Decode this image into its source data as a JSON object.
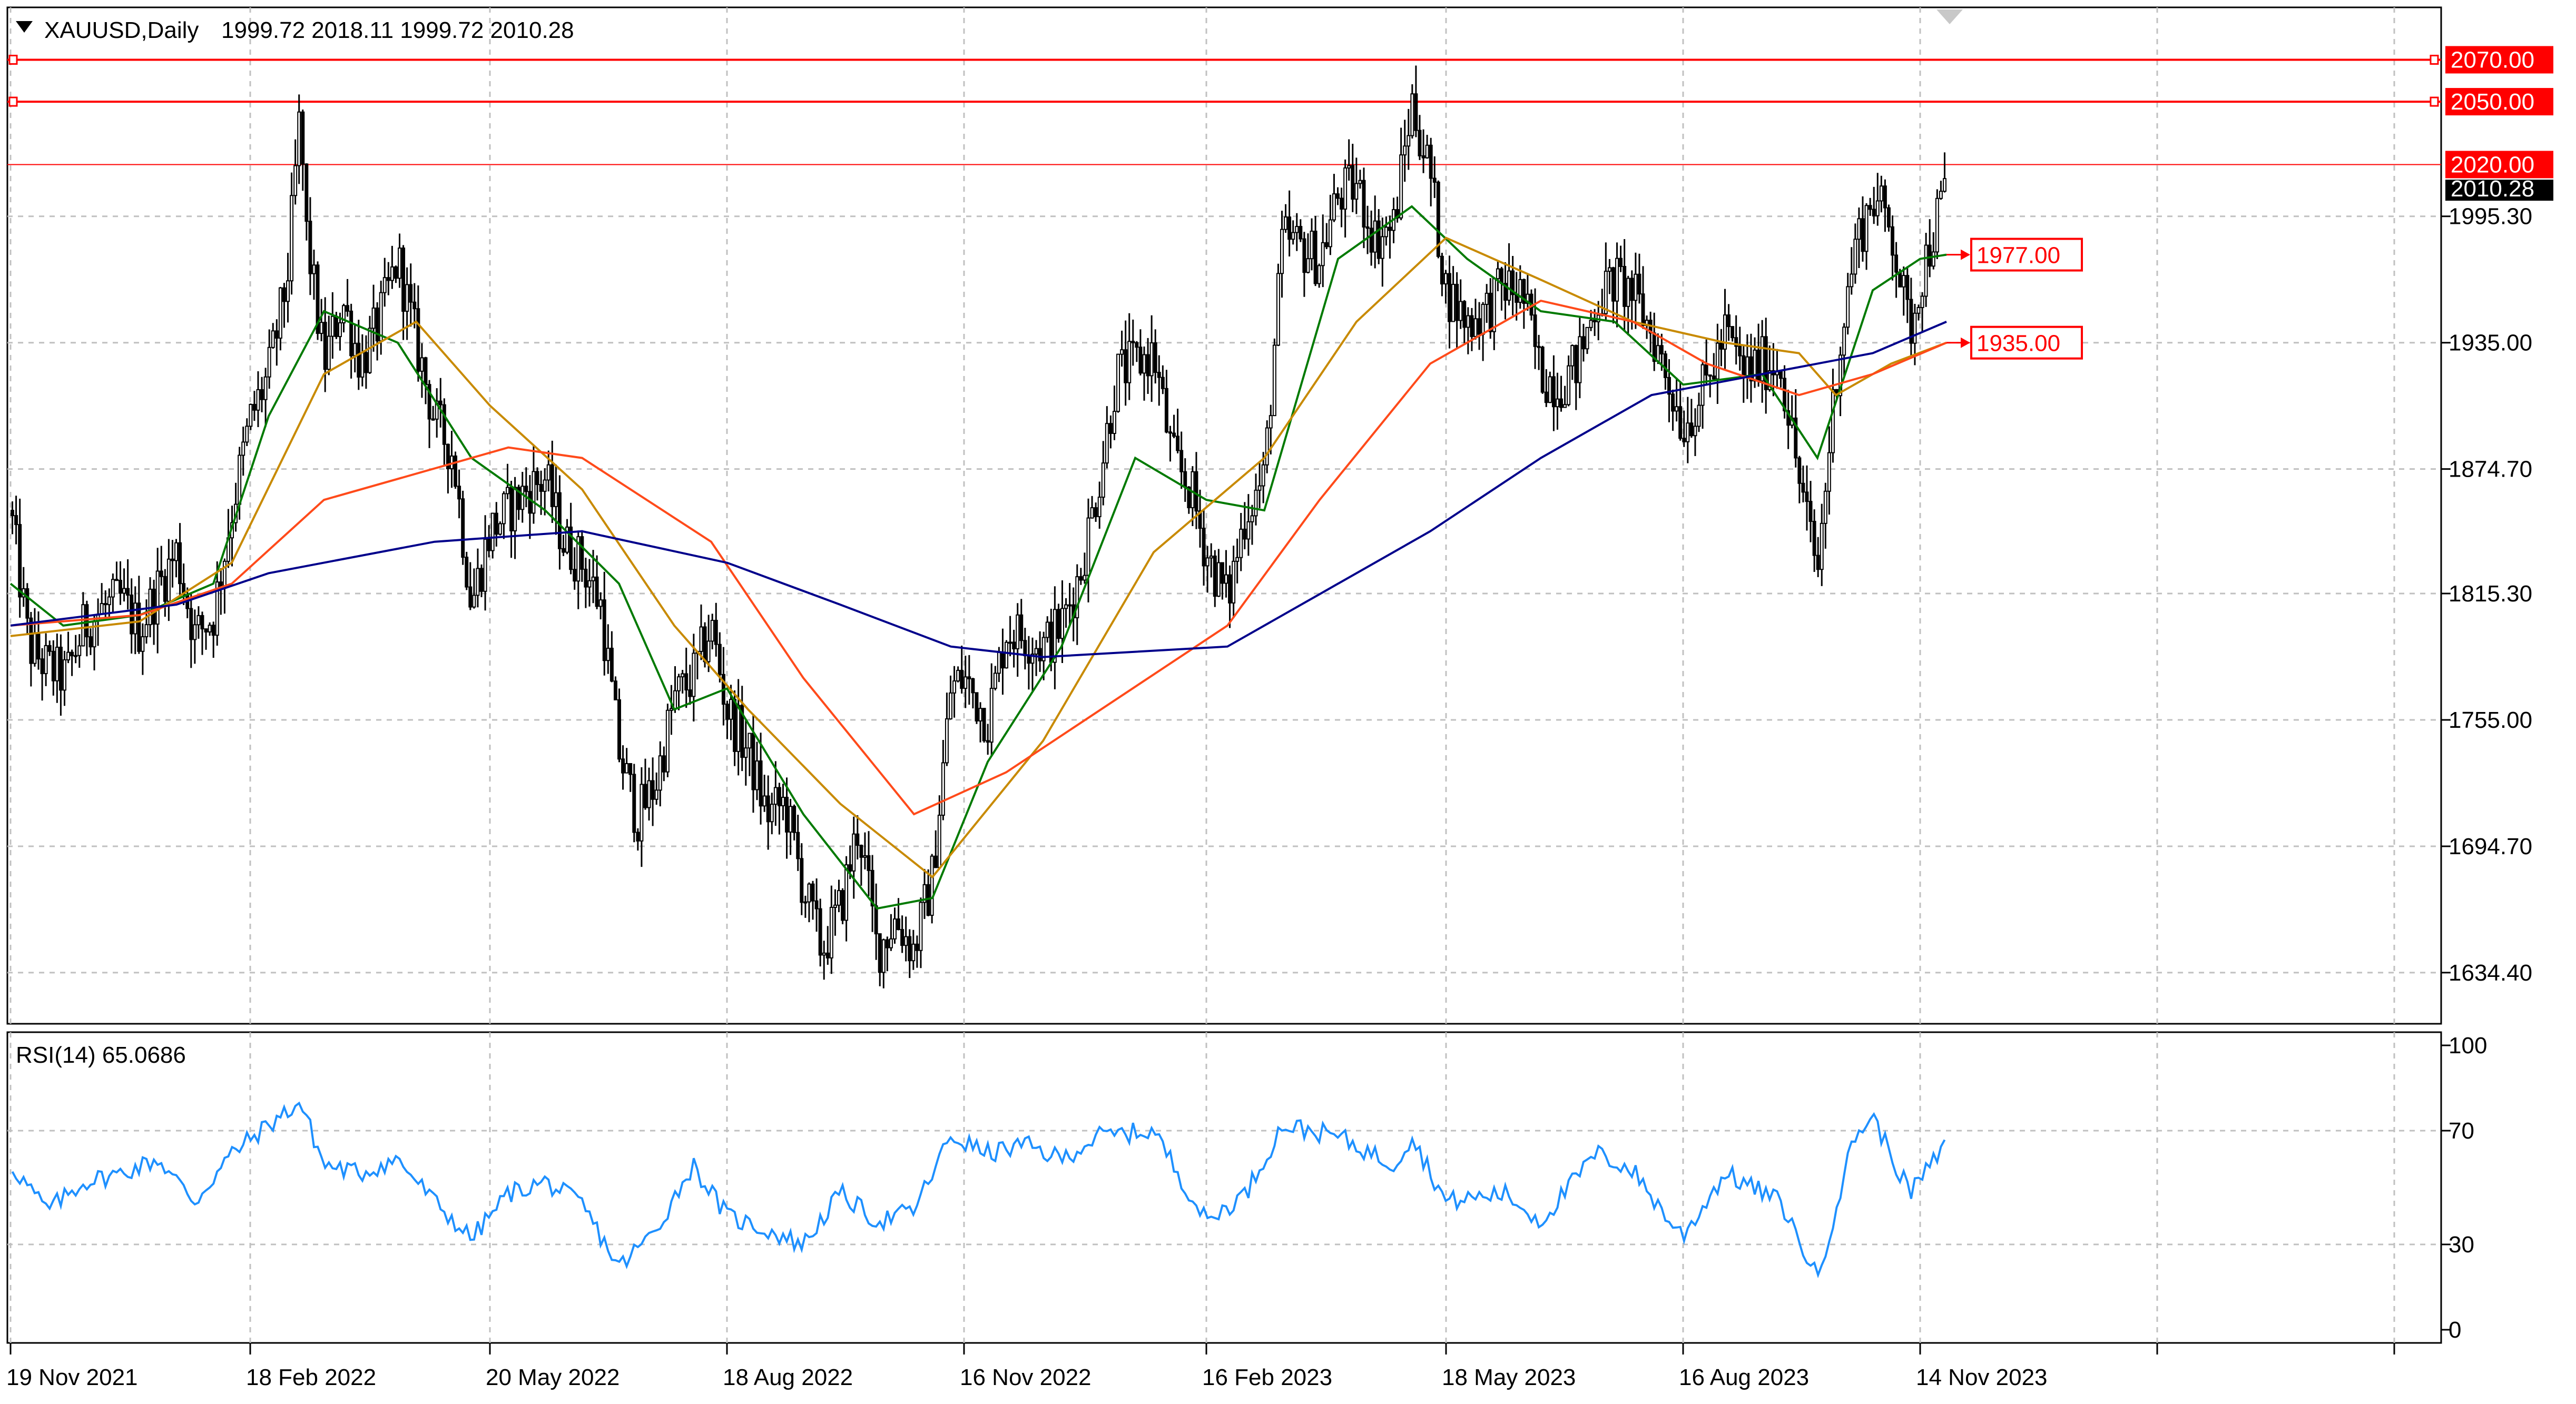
{
  "header": {
    "symbol": "XAUUSD,Daily",
    "ohlc": "1999.72 2018.11 1999.72 2010.28"
  },
  "indicator": {
    "label": "RSI(14) 65.0686"
  },
  "colors": {
    "candle": "#000000",
    "grid": "#c0c0c0",
    "level_line": "#ff0000",
    "ma_fast": "#007a00",
    "ma_mid": "#c88a00",
    "ma_slow": "#ff4a1a",
    "ma_long": "#00008b",
    "rsi": "#1e90ff",
    "current_price_bg": "#000000"
  },
  "chart_data": [
    {
      "type": "candlestick",
      "title": "XAUUSD,Daily",
      "y_ticks": [
        "1995.30",
        "1935.00",
        "1874.70",
        "1815.30",
        "1755.00",
        "1694.70",
        "1634.40"
      ],
      "x_ticks": [
        "19 Nov 2021",
        "18 Feb 2022",
        "20 May 2022",
        "18 Aug 2022",
        "16 Nov 2022",
        "16 Feb 2023",
        "18 May 2023",
        "16 Aug 2023",
        "14 Nov 2023"
      ],
      "ylim": [
        1610,
        2095
      ],
      "grid": true,
      "horizontal_levels": [
        {
          "value": 2070.0,
          "label": "2070.00"
        },
        {
          "value": 2050.0,
          "label": "2050.00"
        },
        {
          "value": 2020.0,
          "label": "2020.00"
        }
      ],
      "current_price": {
        "value": 2010.28,
        "label": "2010.28"
      },
      "ma_tags": [
        {
          "value": 1977.0,
          "label": "1977.00"
        },
        {
          "value": 1935.0,
          "label": "1935.00"
        }
      ],
      "price_path": [
        [
          "19 Nov 2021",
          1855
        ],
        [
          "26 Nov 2021",
          1790
        ],
        [
          "03 Dec 2021",
          1780
        ],
        [
          "10 Dec 2021",
          1775
        ],
        [
          "17 Dec 2021",
          1800
        ],
        [
          "24 Dec 2021",
          1808
        ],
        [
          "31 Dec 2021",
          1812
        ],
        [
          "07 Jan 2022",
          1798
        ],
        [
          "14 Jan 2022",
          1818
        ],
        [
          "21 Jan 2022",
          1835
        ],
        [
          "28 Jan 2022",
          1795
        ],
        [
          "04 Feb 2022",
          1805
        ],
        [
          "11 Feb 2022",
          1855
        ],
        [
          "18 Feb 2022",
          1898
        ],
        [
          "25 Feb 2022",
          1920
        ],
        [
          "04 Mar 2022",
          1965
        ],
        [
          "09 Mar 2022",
          2045
        ],
        [
          "11 Mar 2022",
          1990
        ],
        [
          "18 Mar 2022",
          1925
        ],
        [
          "25 Mar 2022",
          1955
        ],
        [
          "01 Apr 2022",
          1925
        ],
        [
          "08 Apr 2022",
          1945
        ],
        [
          "15 Apr 2022",
          1975
        ],
        [
          "22 Apr 2022",
          1935
        ],
        [
          "29 Apr 2022",
          1898
        ],
        [
          "06 May 2022",
          1882
        ],
        [
          "13 May 2022",
          1810
        ],
        [
          "20 May 2022",
          1845
        ],
        [
          "27 May 2022",
          1855
        ],
        [
          "03 Jun 2022",
          1865
        ],
        [
          "10 Jun 2022",
          1870
        ],
        [
          "17 Jun 2022",
          1840
        ],
        [
          "24 Jun 2022",
          1830
        ],
        [
          "01 Jul 2022",
          1810
        ],
        [
          "08 Jul 2022",
          1740
        ],
        [
          "15 Jul 2022",
          1708
        ],
        [
          "22 Jul 2022",
          1725
        ],
        [
          "29 Jul 2022",
          1765
        ],
        [
          "05 Aug 2022",
          1775
        ],
        [
          "12 Aug 2022",
          1800
        ],
        [
          "18 Aug 2022",
          1760
        ],
        [
          "26 Aug 2022",
          1740
        ],
        [
          "02 Sep 2022",
          1710
        ],
        [
          "09 Sep 2022",
          1715
        ],
        [
          "16 Sep 2022",
          1675
        ],
        [
          "23 Sep 2022",
          1645
        ],
        [
          "30 Sep 2022",
          1665
        ],
        [
          "07 Oct 2022",
          1705
        ],
        [
          "14 Oct 2022",
          1645
        ],
        [
          "21 Oct 2022",
          1660
        ],
        [
          "28 Oct 2022",
          1645
        ],
        [
          "04 Nov 2022",
          1680
        ],
        [
          "11 Nov 2022",
          1770
        ],
        [
          "16 Nov 2022",
          1775
        ],
        [
          "25 Nov 2022",
          1755
        ],
        [
          "02 Dec 2022",
          1798
        ],
        [
          "09 Dec 2022",
          1795
        ],
        [
          "16 Dec 2022",
          1790
        ],
        [
          "23 Dec 2022",
          1800
        ],
        [
          "30 Dec 2022",
          1825
        ],
        [
          "06 Jan 2023",
          1868
        ],
        [
          "13 Jan 2023",
          1920
        ],
        [
          "20 Jan 2023",
          1925
        ],
        [
          "27 Jan 2023",
          1930
        ],
        [
          "03 Feb 2023",
          1880
        ],
        [
          "10 Feb 2023",
          1865
        ],
        [
          "16 Feb 2023",
          1835
        ],
        [
          "24 Feb 2023",
          1812
        ],
        [
          "03 Mar 2023",
          1855
        ],
        [
          "10 Mar 2023",
          1870
        ],
        [
          "17 Mar 2023",
          1985
        ],
        [
          "24 Mar 2023",
          1980
        ],
        [
          "31 Mar 2023",
          1975
        ],
        [
          "07 Apr 2023",
          2005
        ],
        [
          "14 Apr 2023",
          2010
        ],
        [
          "21 Apr 2023",
          1985
        ],
        [
          "28 Apr 2023",
          1990
        ],
        [
          "05 May 2023",
          2050
        ],
        [
          "12 May 2023",
          2015
        ],
        [
          "18 May 2023",
          1960
        ],
        [
          "26 May 2023",
          1945
        ],
        [
          "02 Jun 2023",
          1950
        ],
        [
          "09 Jun 2023",
          1962
        ],
        [
          "16 Jun 2023",
          1958
        ],
        [
          "23 Jun 2023",
          1920
        ],
        [
          "30 Jun 2023",
          1915
        ],
        [
          "07 Jul 2023",
          1925
        ],
        [
          "14 Jul 2023",
          1955
        ],
        [
          "21 Jul 2023",
          1965
        ],
        [
          "28 Jul 2023",
          1958
        ],
        [
          "04 Aug 2023",
          1940
        ],
        [
          "11 Aug 2023",
          1915
        ],
        [
          "16 Aug 2023",
          1895
        ],
        [
          "25 Aug 2023",
          1915
        ],
        [
          "01 Sep 2023",
          1940
        ],
        [
          "08 Sep 2023",
          1920
        ],
        [
          "15 Sep 2023",
          1925
        ],
        [
          "22 Sep 2023",
          1925
        ],
        [
          "29 Sep 2023",
          1870
        ],
        [
          "06 Oct 2023",
          1825
        ],
        [
          "13 Oct 2023",
          1920
        ],
        [
          "20 Oct 2023",
          1980
        ],
        [
          "27 Oct 2023",
          2005
        ],
        [
          "03 Nov 2023",
          1990
        ],
        [
          "10 Nov 2023",
          1940
        ],
        [
          "14 Nov 2023",
          1965
        ],
        [
          "24 Nov 2023",
          2010
        ]
      ],
      "moving_averages": [
        {
          "key": "ma_fast",
          "path": [
            [
              "19 Nov 2021",
              1820
            ],
            [
              "09 Dec 2021",
              1800
            ],
            [
              "07 Jan 2022",
              1805
            ],
            [
              "04 Feb 2022",
              1820
            ],
            [
              "25 Feb 2022",
              1900
            ],
            [
              "18 Mar 2022",
              1950
            ],
            [
              "15 Apr 2022",
              1935
            ],
            [
              "13 May 2022",
              1880
            ],
            [
              "10 Jun 2022",
              1855
            ],
            [
              "08 Jul 2022",
              1820
            ],
            [
              "29 Jul 2022",
              1760
            ],
            [
              "18 Aug 2022",
              1770
            ],
            [
              "16 Sep 2022",
              1710
            ],
            [
              "14 Oct 2022",
              1665
            ],
            [
              "04 Nov 2022",
              1670
            ],
            [
              "25 Nov 2022",
              1735
            ],
            [
              "23 Dec 2022",
              1790
            ],
            [
              "20 Jan 2023",
              1880
            ],
            [
              "16 Feb 2023",
              1860
            ],
            [
              "10 Mar 2023",
              1855
            ],
            [
              "07 Apr 2023",
              1975
            ],
            [
              "05 May 2023",
              2000
            ],
            [
              "26 May 2023",
              1975
            ],
            [
              "23 Jun 2023",
              1950
            ],
            [
              "21 Jul 2023",
              1945
            ],
            [
              "16 Aug 2023",
              1915
            ],
            [
              "15 Sep 2023",
              1920
            ],
            [
              "06 Oct 2023",
              1880
            ],
            [
              "27 Oct 2023",
              1960
            ],
            [
              "14 Nov 2023",
              1975
            ],
            [
              "24 Nov 2023",
              1977
            ]
          ]
        },
        {
          "key": "ma_mid",
          "path": [
            [
              "19 Nov 2021",
              1795
            ],
            [
              "07 Jan 2022",
              1802
            ],
            [
              "11 Feb 2022",
              1830
            ],
            [
              "18 Mar 2022",
              1920
            ],
            [
              "22 Apr 2022",
              1945
            ],
            [
              "20 May 2022",
              1905
            ],
            [
              "24 Jun 2022",
              1865
            ],
            [
              "29 Jul 2022",
              1800
            ],
            [
              "26 Aug 2022",
              1760
            ],
            [
              "30 Sep 2022",
              1715
            ],
            [
              "04 Nov 2022",
              1680
            ],
            [
              "16 Dec 2022",
              1745
            ],
            [
              "27 Jan 2023",
              1835
            ],
            [
              "10 Mar 2023",
              1880
            ],
            [
              "14 Apr 2023",
              1945
            ],
            [
              "18 May 2023",
              1985
            ],
            [
              "23 Jun 2023",
              1965
            ],
            [
              "28 Jul 2023",
              1945
            ],
            [
              "01 Sep 2023",
              1935
            ],
            [
              "29 Sep 2023",
              1930
            ],
            [
              "13 Oct 2023",
              1910
            ],
            [
              "03 Nov 2023",
              1925
            ],
            [
              "24 Nov 2023",
              1935
            ]
          ]
        },
        {
          "key": "ma_slow",
          "path": [
            [
              "19 Nov 2021",
              1800
            ],
            [
              "07 Jan 2022",
              1805
            ],
            [
              "11 Feb 2022",
              1820
            ],
            [
              "18 Mar 2022",
              1860
            ],
            [
              "29 Apr 2022",
              1875
            ],
            [
              "27 May 2022",
              1885
            ],
            [
              "24 Jun 2022",
              1880
            ],
            [
              "12 Aug 2022",
              1840
            ],
            [
              "16 Sep 2022",
              1775
            ],
            [
              "28 Oct 2022",
              1710
            ],
            [
              "02 Dec 2022",
              1730
            ],
            [
              "13 Jan 2023",
              1765
            ],
            [
              "24 Feb 2023",
              1800
            ],
            [
              "31 Mar 2023",
              1860
            ],
            [
              "12 May 2023",
              1925
            ],
            [
              "23 Jun 2023",
              1955
            ],
            [
              "28 Jul 2023",
              1945
            ],
            [
              "25 Aug 2023",
              1925
            ],
            [
              "29 Sep 2023",
              1910
            ],
            [
              "27 Oct 2023",
              1920
            ],
            [
              "24 Nov 2023",
              1935
            ]
          ]
        },
        {
          "key": "ma_long",
          "path": [
            [
              "19 Nov 2021",
              1800
            ],
            [
              "21 Jan 2022",
              1810
            ],
            [
              "25 Feb 2022",
              1825
            ],
            [
              "29 Apr 2022",
              1840
            ],
            [
              "24 Jun 2022",
              1845
            ],
            [
              "18 Aug 2022",
              1830
            ],
            [
              "30 Sep 2022",
              1810
            ],
            [
              "11 Nov 2022",
              1790
            ],
            [
              "16 Dec 2022",
              1785
            ],
            [
              "24 Feb 2023",
              1790
            ],
            [
              "31 Mar 2023",
              1815
            ],
            [
              "12 May 2023",
              1845
            ],
            [
              "23 Jun 2023",
              1880
            ],
            [
              "04 Aug 2023",
              1910
            ],
            [
              "15 Sep 2023",
              1920
            ],
            [
              "27 Oct 2023",
              1930
            ],
            [
              "24 Nov 2023",
              1945
            ]
          ]
        }
      ]
    },
    {
      "type": "line",
      "title": "RSI(14) 65.0686",
      "y_ticks": [
        "100",
        "70",
        "30",
        "0"
      ],
      "ylim": [
        0,
        100
      ],
      "series": [
        {
          "path": [
            [
              "19 Nov 2021",
              58
            ],
            [
              "03 Dec 2021",
              42
            ],
            [
              "17 Dec 2021",
              52
            ],
            [
              "31 Dec 2021",
              55
            ],
            [
              "14 Jan 2022",
              60
            ],
            [
              "28 Jan 2022",
              45
            ],
            [
              "11 Feb 2022",
              62
            ],
            [
              "25 Feb 2022",
              72
            ],
            [
              "09 Mar 2022",
              80
            ],
            [
              "18 Mar 2022",
              58
            ],
            [
              "01 Apr 2022",
              55
            ],
            [
              "15 Apr 2022",
              60
            ],
            [
              "29 Apr 2022",
              45
            ],
            [
              "13 May 2022",
              32
            ],
            [
              "27 May 2022",
              48
            ],
            [
              "10 Jun 2022",
              52
            ],
            [
              "24 Jun 2022",
              44
            ],
            [
              "08 Jul 2022",
              22
            ],
            [
              "22 Jul 2022",
              35
            ],
            [
              "05 Aug 2022",
              58
            ],
            [
              "18 Aug 2022",
              40
            ],
            [
              "02 Sep 2022",
              35
            ],
            [
              "16 Sep 2022",
              30
            ],
            [
              "30 Sep 2022",
              48
            ],
            [
              "14 Oct 2022",
              38
            ],
            [
              "28 Oct 2022",
              42
            ],
            [
              "11 Nov 2022",
              68
            ],
            [
              "25 Nov 2022",
              62
            ],
            [
              "09 Dec 2022",
              65
            ],
            [
              "23 Dec 2022",
              60
            ],
            [
              "06 Jan 2023",
              68
            ],
            [
              "27 Jan 2023",
              70
            ],
            [
              "16 Feb 2023",
              38
            ],
            [
              "03 Mar 2023",
              48
            ],
            [
              "17 Mar 2023",
              72
            ],
            [
              "07 Apr 2023",
              68
            ],
            [
              "28 Apr 2023",
              58
            ],
            [
              "05 May 2023",
              68
            ],
            [
              "18 May 2023",
              45
            ],
            [
              "09 Jun 2023",
              48
            ],
            [
              "23 Jun 2023",
              38
            ],
            [
              "14 Jul 2023",
              62
            ],
            [
              "28 Jul 2023",
              56
            ],
            [
              "11 Aug 2023",
              38
            ],
            [
              "16 Aug 2023",
              33
            ],
            [
              "01 Sep 2023",
              55
            ],
            [
              "22 Sep 2023",
              45
            ],
            [
              "06 Oct 2023",
              18
            ],
            [
              "20 Oct 2023",
              68
            ],
            [
              "27 Oct 2023",
              75
            ],
            [
              "10 Nov 2023",
              48
            ],
            [
              "24 Nov 2023",
              65
            ]
          ]
        }
      ]
    }
  ]
}
